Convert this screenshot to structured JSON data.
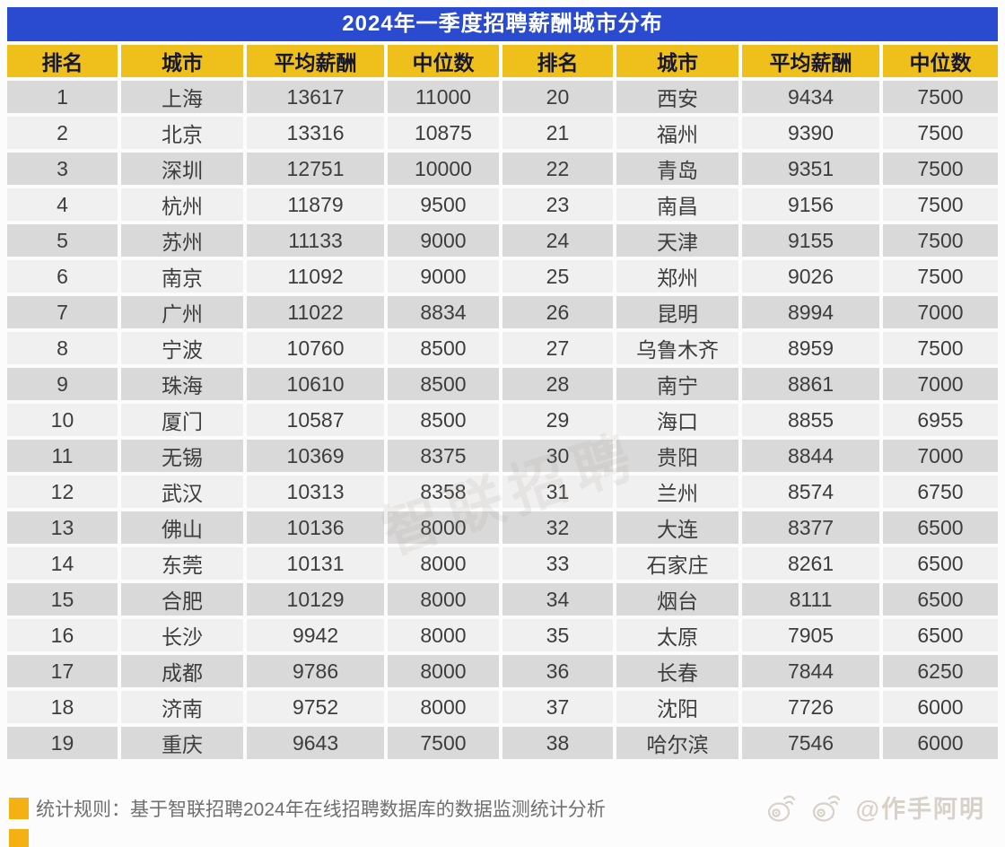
{
  "page": {
    "title": "2024年一季度招聘薪酬城市分布",
    "note_text": "统计规则：基于智联招聘2024年在线招聘数据库的数据监测统计分析",
    "watermark_handle": "@作手阿明",
    "table_watermark": "智联招聘"
  },
  "colors": {
    "title_bar_blue": "#2a4bd0",
    "header_yellow": "#efc01b",
    "row_odd_gray": "#d9d9d9",
    "row_even_light": "#f0f0f0",
    "note_bullet_yellow": "#f5b113"
  },
  "chart_data": {
    "type": "table",
    "title": "2024年一季度招聘薪酬城市分布",
    "columns": [
      "排名",
      "城市",
      "平均薪酬",
      "中位数",
      "排名",
      "城市",
      "平均薪酬",
      "中位数"
    ],
    "rows": [
      [
        1,
        "上海",
        13617,
        11000,
        20,
        "西安",
        9434,
        7500
      ],
      [
        2,
        "北京",
        13316,
        10875,
        21,
        "福州",
        9390,
        7500
      ],
      [
        3,
        "深圳",
        12751,
        10000,
        22,
        "青岛",
        9351,
        7500
      ],
      [
        4,
        "杭州",
        11879,
        9500,
        23,
        "南昌",
        9156,
        7500
      ],
      [
        5,
        "苏州",
        11133,
        9000,
        24,
        "天津",
        9155,
        7500
      ],
      [
        6,
        "南京",
        11092,
        9000,
        25,
        "郑州",
        9026,
        7500
      ],
      [
        7,
        "广州",
        11022,
        8834,
        26,
        "昆明",
        8994,
        7000
      ],
      [
        8,
        "宁波",
        10760,
        8500,
        27,
        "乌鲁木齐",
        8959,
        7500
      ],
      [
        9,
        "珠海",
        10610,
        8500,
        28,
        "南宁",
        8861,
        7000
      ],
      [
        10,
        "厦门",
        10587,
        8500,
        29,
        "海口",
        8855,
        6955
      ],
      [
        11,
        "无锡",
        10369,
        8375,
        30,
        "贵阳",
        8844,
        7000
      ],
      [
        12,
        "武汉",
        10313,
        8358,
        31,
        "兰州",
        8574,
        6750
      ],
      [
        13,
        "佛山",
        10136,
        8000,
        32,
        "大连",
        8377,
        6500
      ],
      [
        14,
        "东莞",
        10131,
        8000,
        33,
        "石家庄",
        8261,
        6500
      ],
      [
        15,
        "合肥",
        10129,
        8000,
        34,
        "烟台",
        8111,
        6500
      ],
      [
        16,
        "长沙",
        9942,
        8000,
        35,
        "太原",
        7905,
        6500
      ],
      [
        17,
        "成都",
        9786,
        8000,
        36,
        "长春",
        7844,
        6250
      ],
      [
        18,
        "济南",
        9752,
        8000,
        37,
        "沈阳",
        7726,
        6000
      ],
      [
        19,
        "重庆",
        9643,
        7500,
        38,
        "哈尔滨",
        7546,
        6000
      ]
    ]
  }
}
